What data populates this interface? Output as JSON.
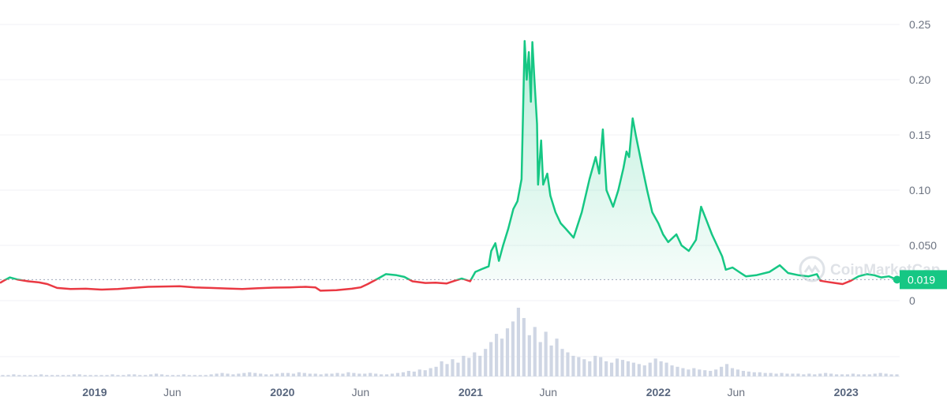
{
  "chart_data": {
    "type": "line",
    "x_unit": "date",
    "y_ticks": [
      "0.25",
      "0.20",
      "0.15",
      "0.10",
      "0.050",
      "0"
    ],
    "y_tick_values": [
      0.25,
      0.2,
      0.15,
      0.1,
      0.05,
      0
    ],
    "ylim": [
      0,
      0.25
    ],
    "x_ticks": [
      {
        "label": "2019",
        "date": "2019-01-01",
        "bold": true
      },
      {
        "label": "Jun",
        "date": "2019-06-01",
        "bold": false
      },
      {
        "label": "2020",
        "date": "2020-01-01",
        "bold": true
      },
      {
        "label": "Jun",
        "date": "2020-06-01",
        "bold": false
      },
      {
        "label": "2021",
        "date": "2021-01-01",
        "bold": true
      },
      {
        "label": "Jun",
        "date": "2021-06-01",
        "bold": false
      },
      {
        "label": "2022",
        "date": "2022-01-01",
        "bold": true
      },
      {
        "label": "Jun",
        "date": "2022-06-01",
        "bold": false
      },
      {
        "label": "2023",
        "date": "2023-01-01",
        "bold": true
      }
    ],
    "xlim": [
      "2018-07-01",
      "2023-04-15"
    ],
    "grid": true,
    "baseline_value": 0.019,
    "current_price_label": "0.019",
    "colors": {
      "above": "#16c784",
      "below": "#ea3943",
      "grid": "#f0f2f5",
      "baseline": "#a1a7bb",
      "volume": "#cfd6e4"
    },
    "series": [
      {
        "points": [
          [
            "2018-07-01",
            0.016
          ],
          [
            "2018-07-10",
            0.0185
          ],
          [
            "2018-07-20",
            0.021
          ],
          [
            "2018-08-05",
            0.019
          ],
          [
            "2018-08-25",
            0.0175
          ],
          [
            "2018-09-15",
            0.0165
          ],
          [
            "2018-10-01",
            0.015
          ],
          [
            "2018-10-20",
            0.0115
          ],
          [
            "2018-11-15",
            0.0105
          ],
          [
            "2018-12-15",
            0.0108
          ],
          [
            "2019-01-15",
            0.01
          ],
          [
            "2019-02-15",
            0.0105
          ],
          [
            "2019-03-15",
            0.0115
          ],
          [
            "2019-04-15",
            0.0125
          ],
          [
            "2019-05-15",
            0.0128
          ],
          [
            "2019-06-15",
            0.013
          ],
          [
            "2019-07-15",
            0.012
          ],
          [
            "2019-08-15",
            0.0115
          ],
          [
            "2019-09-15",
            0.011
          ],
          [
            "2019-10-15",
            0.0105
          ],
          [
            "2019-11-15",
            0.0112
          ],
          [
            "2019-12-15",
            0.0118
          ],
          [
            "2020-01-15",
            0.012
          ],
          [
            "2020-02-15",
            0.0125
          ],
          [
            "2020-03-05",
            0.012
          ],
          [
            "2020-03-15",
            0.009
          ],
          [
            "2020-04-15",
            0.0095
          ],
          [
            "2020-05-15",
            0.0108
          ],
          [
            "2020-06-01",
            0.012
          ],
          [
            "2020-06-15",
            0.015
          ],
          [
            "2020-07-05",
            0.02
          ],
          [
            "2020-07-20",
            0.024
          ],
          [
            "2020-08-10",
            0.023
          ],
          [
            "2020-08-25",
            0.0215
          ],
          [
            "2020-09-10",
            0.0175
          ],
          [
            "2020-10-05",
            0.016
          ],
          [
            "2020-10-25",
            0.0162
          ],
          [
            "2020-11-15",
            0.0155
          ],
          [
            "2020-12-01",
            0.018
          ],
          [
            "2020-12-15",
            0.02
          ],
          [
            "2020-12-31",
            0.0175
          ],
          [
            "2021-01-10",
            0.026
          ],
          [
            "2021-01-25",
            0.029
          ],
          [
            "2021-02-05",
            0.031
          ],
          [
            "2021-02-10",
            0.045
          ],
          [
            "2021-02-18",
            0.052
          ],
          [
            "2021-02-25",
            0.036
          ],
          [
            "2021-03-05",
            0.05
          ],
          [
            "2021-03-15",
            0.065
          ],
          [
            "2021-03-25",
            0.083
          ],
          [
            "2021-04-02",
            0.09
          ],
          [
            "2021-04-10",
            0.11
          ],
          [
            "2021-04-16",
            0.235
          ],
          [
            "2021-04-20",
            0.2
          ],
          [
            "2021-04-24",
            0.225
          ],
          [
            "2021-04-28",
            0.18
          ],
          [
            "2021-05-01",
            0.234
          ],
          [
            "2021-05-05",
            0.2
          ],
          [
            "2021-05-10",
            0.16
          ],
          [
            "2021-05-12",
            0.105
          ],
          [
            "2021-05-18",
            0.145
          ],
          [
            "2021-05-22",
            0.105
          ],
          [
            "2021-05-30",
            0.115
          ],
          [
            "2021-06-05",
            0.095
          ],
          [
            "2021-06-15",
            0.08
          ],
          [
            "2021-06-25",
            0.07
          ],
          [
            "2021-07-05",
            0.065
          ],
          [
            "2021-07-20",
            0.057
          ],
          [
            "2021-08-05",
            0.08
          ],
          [
            "2021-08-20",
            0.11
          ],
          [
            "2021-09-01",
            0.13
          ],
          [
            "2021-09-08",
            0.115
          ],
          [
            "2021-09-15",
            0.155
          ],
          [
            "2021-09-22",
            0.1
          ],
          [
            "2021-10-05",
            0.085
          ],
          [
            "2021-10-15",
            0.1
          ],
          [
            "2021-10-25",
            0.12
          ],
          [
            "2021-10-31",
            0.135
          ],
          [
            "2021-11-05",
            0.13
          ],
          [
            "2021-11-12",
            0.165
          ],
          [
            "2021-11-18",
            0.15
          ],
          [
            "2021-12-01",
            0.12
          ],
          [
            "2021-12-10",
            0.1
          ],
          [
            "2021-12-20",
            0.08
          ],
          [
            "2022-01-01",
            0.07
          ],
          [
            "2022-01-10",
            0.06
          ],
          [
            "2022-01-20",
            0.053
          ],
          [
            "2022-02-05",
            0.06
          ],
          [
            "2022-02-15",
            0.05
          ],
          [
            "2022-03-01",
            0.045
          ],
          [
            "2022-03-15",
            0.055
          ],
          [
            "2022-03-25",
            0.085
          ],
          [
            "2022-04-05",
            0.072
          ],
          [
            "2022-04-15",
            0.06
          ],
          [
            "2022-04-25",
            0.05
          ],
          [
            "2022-05-05",
            0.04
          ],
          [
            "2022-05-12",
            0.028
          ],
          [
            "2022-05-25",
            0.03
          ],
          [
            "2022-06-10",
            0.025
          ],
          [
            "2022-06-20",
            0.022
          ],
          [
            "2022-07-10",
            0.023
          ],
          [
            "2022-08-05",
            0.026
          ],
          [
            "2022-08-25",
            0.032
          ],
          [
            "2022-09-10",
            0.025
          ],
          [
            "2022-10-01",
            0.023
          ],
          [
            "2022-10-20",
            0.022
          ],
          [
            "2022-11-05",
            0.024
          ],
          [
            "2022-11-12",
            0.018
          ],
          [
            "2022-11-25",
            0.017
          ],
          [
            "2022-12-10",
            0.016
          ],
          [
            "2022-12-25",
            0.015
          ],
          [
            "2023-01-10",
            0.018
          ],
          [
            "2023-01-25",
            0.022
          ],
          [
            "2023-02-10",
            0.024
          ],
          [
            "2023-02-25",
            0.023
          ],
          [
            "2023-03-10",
            0.021
          ],
          [
            "2023-03-25",
            0.022
          ],
          [
            "2023-04-10",
            0.019
          ]
        ]
      }
    ],
    "volume": [
      0.02,
      0.02,
      0.03,
      0.02,
      0.02,
      0.02,
      0.02,
      0.03,
      0.02,
      0.02,
      0.02,
      0.02,
      0.02,
      0.03,
      0.03,
      0.02,
      0.02,
      0.02,
      0.02,
      0.02,
      0.03,
      0.02,
      0.02,
      0.03,
      0.03,
      0.02,
      0.02,
      0.03,
      0.04,
      0.03,
      0.02,
      0.02,
      0.02,
      0.03,
      0.02,
      0.02,
      0.02,
      0.02,
      0.03,
      0.04,
      0.05,
      0.04,
      0.03,
      0.04,
      0.05,
      0.06,
      0.05,
      0.04,
      0.03,
      0.03,
      0.04,
      0.05,
      0.05,
      0.04,
      0.06,
      0.05,
      0.04,
      0.04,
      0.03,
      0.04,
      0.04,
      0.05,
      0.04,
      0.06,
      0.05,
      0.04,
      0.04,
      0.05,
      0.04,
      0.03,
      0.03,
      0.04,
      0.05,
      0.06,
      0.08,
      0.07,
      0.1,
      0.09,
      0.12,
      0.14,
      0.22,
      0.18,
      0.25,
      0.2,
      0.3,
      0.27,
      0.35,
      0.3,
      0.4,
      0.5,
      0.62,
      0.55,
      0.7,
      0.8,
      1.0,
      0.85,
      0.6,
      0.72,
      0.5,
      0.65,
      0.45,
      0.55,
      0.4,
      0.35,
      0.3,
      0.28,
      0.25,
      0.22,
      0.3,
      0.28,
      0.22,
      0.2,
      0.26,
      0.24,
      0.22,
      0.2,
      0.18,
      0.16,
      0.2,
      0.26,
      0.22,
      0.2,
      0.16,
      0.14,
      0.12,
      0.1,
      0.12,
      0.1,
      0.09,
      0.08,
      0.1,
      0.14,
      0.18,
      0.12,
      0.1,
      0.08,
      0.07,
      0.06,
      0.06,
      0.05,
      0.05,
      0.04,
      0.05,
      0.04,
      0.04,
      0.04,
      0.03,
      0.04,
      0.03,
      0.04,
      0.05,
      0.04,
      0.03,
      0.03,
      0.03,
      0.04,
      0.03,
      0.03,
      0.03,
      0.04,
      0.05,
      0.04,
      0.03,
      0.03
    ]
  },
  "watermark": {
    "text": "CoinMarketCap",
    "icon": "coinmarketcap-logo"
  }
}
